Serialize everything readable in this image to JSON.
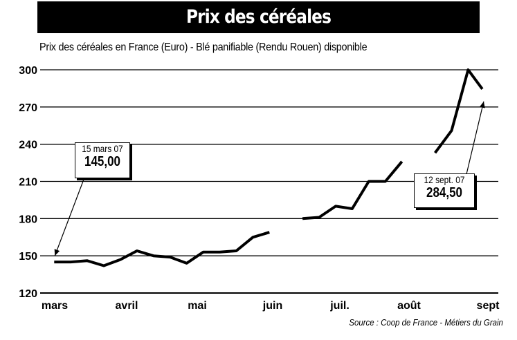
{
  "title": "Prix des céréales",
  "source": "Source : Coop de France - Métiers du Grain",
  "annotations": [
    {
      "date": "15 mars 07",
      "value": "145,00"
    },
    {
      "date": "12 sept. 07",
      "value": "284,50"
    }
  ],
  "chart_data": {
    "type": "line",
    "title": "Prix des céréales en France (Euro) - Blé panifiable (Rendu Rouen) disponible",
    "xlabel": "",
    "ylabel": "",
    "ylim": [
      120,
      300
    ],
    "yticks": [
      120,
      150,
      180,
      210,
      240,
      270,
      300
    ],
    "month_labels": [
      "mars",
      "avril",
      "mai",
      "juin",
      "juil.",
      "août",
      "sept"
    ],
    "grid": true,
    "legend": "none",
    "color": "#000000",
    "series": [
      {
        "segments": [
          [
            {
              "x": "2007-03-15",
              "y": 145.0
            },
            {
              "x": "2007-03-22",
              "y": 145.0
            },
            {
              "x": "2007-03-29",
              "y": 146.0
            },
            {
              "x": "2007-04-05",
              "y": 142.0
            },
            {
              "x": "2007-04-12",
              "y": 147.0
            },
            {
              "x": "2007-04-19",
              "y": 154.0
            },
            {
              "x": "2007-04-26",
              "y": 150.0
            },
            {
              "x": "2007-05-03",
              "y": 149.0
            },
            {
              "x": "2007-05-10",
              "y": 144.0
            },
            {
              "x": "2007-05-17",
              "y": 153.0
            },
            {
              "x": "2007-05-24",
              "y": 153.0
            },
            {
              "x": "2007-05-31",
              "y": 154.0
            },
            {
              "x": "2007-06-07",
              "y": 165.0
            },
            {
              "x": "2007-06-14",
              "y": 169.0
            }
          ],
          [
            {
              "x": "2007-06-28",
              "y": 180.0
            },
            {
              "x": "2007-07-05",
              "y": 181.0
            },
            {
              "x": "2007-07-12",
              "y": 190.0
            },
            {
              "x": "2007-07-19",
              "y": 188.0
            },
            {
              "x": "2007-07-26",
              "y": 210.0
            },
            {
              "x": "2007-08-02",
              "y": 210.0
            },
            {
              "x": "2007-08-09",
              "y": 226.0
            }
          ],
          [
            {
              "x": "2007-08-23",
              "y": 233.0
            },
            {
              "x": "2007-08-30",
              "y": 251.0
            },
            {
              "x": "2007-09-06",
              "y": 300.0
            },
            {
              "x": "2007-09-12",
              "y": 284.5
            }
          ]
        ]
      }
    ]
  }
}
